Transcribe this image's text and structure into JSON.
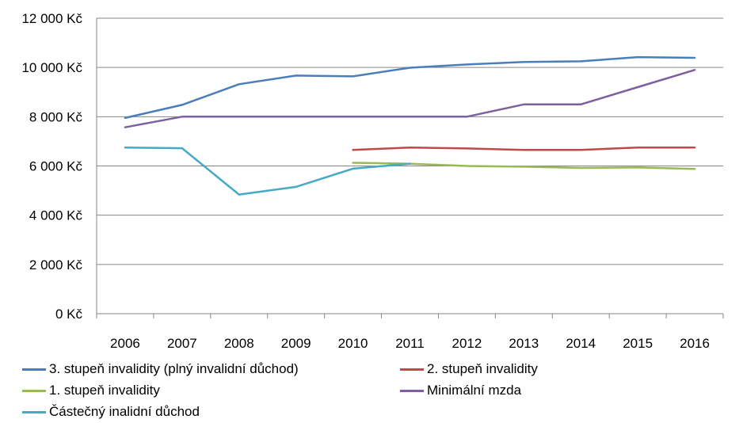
{
  "chart_data": {
    "type": "line",
    "title": "",
    "xlabel": "",
    "ylabel": "",
    "categories": [
      "2006",
      "2007",
      "2008",
      "2009",
      "2010",
      "2011",
      "2012",
      "2013",
      "2014",
      "2015",
      "2016"
    ],
    "ylim": [
      0,
      12000
    ],
    "yticks": [
      0,
      2000,
      4000,
      6000,
      8000,
      10000,
      12000
    ],
    "ytick_labels": [
      "0 Kč",
      "2 000 Kč",
      "4 000 Kč",
      "6 000 Kč",
      "8 000 Kč",
      "10 000 Kč",
      "12 000 Kč"
    ],
    "grid": true,
    "legend_position": "bottom",
    "series": [
      {
        "name": "3. stupeň invalidity (plný invalidní důchod)",
        "color": "#4A7EBB",
        "values": [
          7950,
          8480,
          9320,
          9670,
          9640,
          9990,
          10120,
          10220,
          10250,
          10420,
          10390
        ]
      },
      {
        "name": "2. stupeň invalidity",
        "color": "#BE4B48",
        "values": [
          null,
          null,
          null,
          null,
          6650,
          6750,
          6710,
          6650,
          6650,
          6750,
          6750
        ]
      },
      {
        "name": "1. stupeň invalidity",
        "color": "#98B954",
        "values": [
          null,
          null,
          null,
          null,
          6130,
          6090,
          6000,
          5970,
          5920,
          5940,
          5880
        ]
      },
      {
        "name": "Minimální mzda",
        "color": "#7D60A0",
        "values": [
          7570,
          8000,
          8000,
          8000,
          8000,
          8000,
          8000,
          8500,
          8500,
          9200,
          9900
        ]
      },
      {
        "name": "Částečný inalidní důchod",
        "color": "#46AAC5",
        "values": [
          6750,
          6720,
          4840,
          5150,
          5890,
          6090,
          null,
          null,
          null,
          null,
          null
        ]
      }
    ]
  }
}
